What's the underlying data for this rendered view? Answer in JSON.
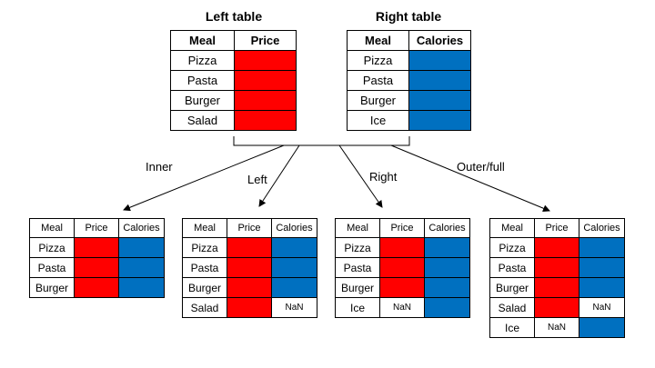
{
  "titles": {
    "left": "Left table",
    "right": "Right table"
  },
  "left_table": {
    "headers": [
      "Meal",
      "Price"
    ],
    "rows": [
      "Pizza",
      "Pasta",
      "Burger",
      "Salad"
    ]
  },
  "right_table": {
    "headers": [
      "Meal",
      "Calories"
    ],
    "rows": [
      "Pizza",
      "Pasta",
      "Burger",
      "Ice"
    ]
  },
  "joins": {
    "inner": {
      "label": "Inner",
      "headers": [
        "Meal",
        "Price",
        "Calories"
      ],
      "rows": [
        "Pizza",
        "Pasta",
        "Burger"
      ]
    },
    "left": {
      "label": "Left",
      "headers": [
        "Meal",
        "Price",
        "Calories"
      ],
      "rows": [
        "Pizza",
        "Pasta",
        "Burger",
        "Salad"
      ],
      "nan": "NaN"
    },
    "right": {
      "label": "Right",
      "headers": [
        "Meal",
        "Price",
        "Calories"
      ],
      "rows": [
        "Pizza",
        "Pasta",
        "Burger",
        "Ice"
      ],
      "nan": "NaN"
    },
    "outer": {
      "label": "Outer/full",
      "headers": [
        "Meal",
        "Price",
        "Calories"
      ],
      "rows": [
        "Pizza",
        "Pasta",
        "Burger",
        "Salad",
        "Ice"
      ],
      "nan": "NaN"
    }
  },
  "colors": {
    "price_fill": "#ff0000",
    "calories_fill": "#0070c0"
  }
}
